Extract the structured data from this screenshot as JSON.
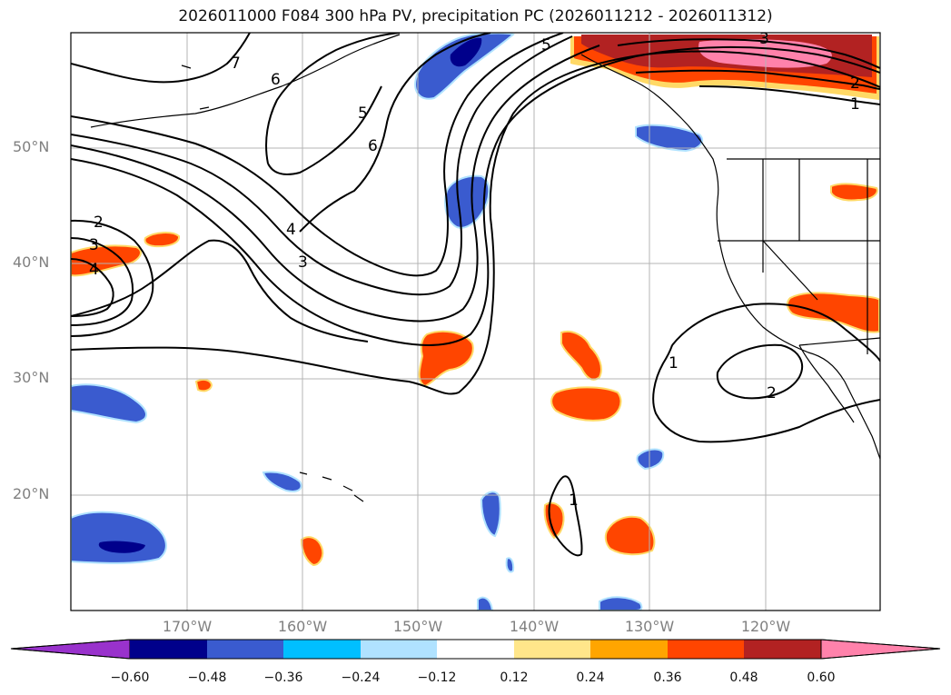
{
  "title": "2026011000 F084 300 hPa PV, precipitation PC (2026011212 - 2026011312)",
  "lat_labels": [
    "50°N",
    "40°N",
    "30°N",
    "20°N"
  ],
  "lon_labels": [
    "170°W",
    "160°W",
    "150°W",
    "140°W",
    "130°W",
    "120°W"
  ],
  "colorbar": {
    "ticks": [
      "−0.60",
      "−0.48",
      "−0.36",
      "−0.24",
      "−0.12",
      "0.12",
      "0.24",
      "0.36",
      "0.48",
      "0.60"
    ],
    "colors": [
      "#9932cc",
      "#00008b",
      "#3a5bcf",
      "#00bfff",
      "#b0e2ff",
      "#ffffff",
      "#ffe68a",
      "#ffa500",
      "#ff4500",
      "#b22222",
      "#ff82ab"
    ]
  },
  "contour_labels": {
    "c7": "7",
    "c6a": "6",
    "c6b": "6",
    "c5a": "5",
    "c5b": "5",
    "c4": "4",
    "c3a": "3",
    "c3b": "3",
    "c2a": "2",
    "c2b": "2",
    "c2c": "2",
    "c1a": "1",
    "c1b": "1",
    "c1c": "1",
    "c4b": "4"
  },
  "map": {
    "extent_lon": [
      -180,
      -110
    ],
    "extent_lat": [
      10,
      60
    ],
    "fields": [
      "300 hPa PV",
      "precipitation PC"
    ]
  }
}
